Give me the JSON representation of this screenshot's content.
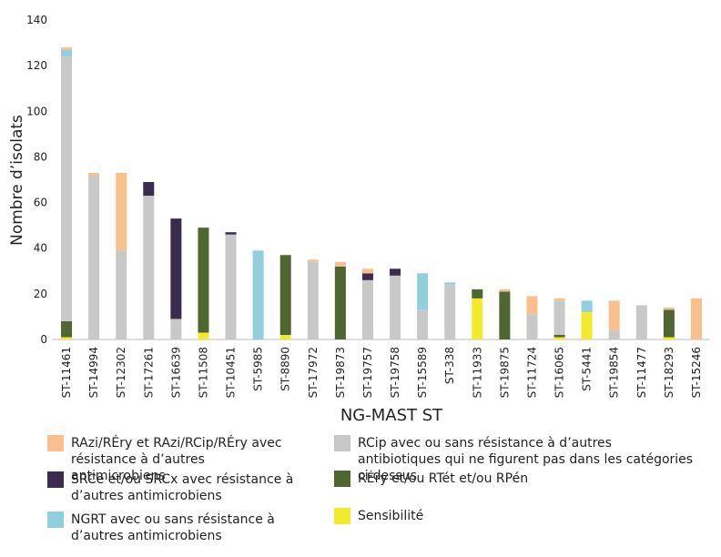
{
  "chart_data": {
    "type": "stacked_bar",
    "x_label": "NG-MAST ST",
    "y_label": "Nombre d’isolats",
    "categories": [
      "ST-11461",
      "ST-14994",
      "ST-12302",
      "ST-17261",
      "ST-16639",
      "ST-11508",
      "ST-10451",
      "ST-5985",
      "ST-8890",
      "ST-17972",
      "ST-19873",
      "ST-19757",
      "ST-19758",
      "ST-15589",
      "ST-338",
      "ST-11933",
      "ST-19875",
      "ST-11724",
      "ST-16065",
      "ST-5441",
      "ST-19854",
      "ST-11477",
      "ST-18293",
      "ST-15246"
    ],
    "series": [
      {
        "name": "Sensibilité",
        "color": "#f2ea2a",
        "values": [
          1,
          0,
          0,
          0,
          0,
          3,
          0,
          0,
          2,
          0,
          0,
          0,
          0,
          0,
          0,
          18,
          0,
          0,
          1,
          12,
          0,
          0,
          1,
          0
        ]
      },
      {
        "name": "RÉry et/ou RTét et/ou RPén",
        "color": "#4e6630",
        "values": [
          7,
          0,
          0,
          0,
          0,
          46,
          0,
          0,
          35,
          0,
          32,
          0,
          0,
          0,
          0,
          4,
          21,
          0,
          1,
          0,
          0,
          0,
          12,
          0
        ]
      },
      {
        "name": "RCip avec ou sans résistance à d’autres antibiotiques qui ne figurent pas dans les catégories ci-dessus",
        "color": "#c8c8c8",
        "values": [
          116,
          72,
          39,
          63,
          9,
          0,
          46,
          0,
          0,
          34,
          0,
          26,
          28,
          13,
          24,
          0,
          0,
          11,
          15,
          0,
          4,
          15,
          0,
          0
        ]
      },
      {
        "name": "SRCe et/ou SRCx avec résistance à d’autres antimicrobiens",
        "color": "#3b2c4f",
        "values": [
          0,
          0,
          0,
          6,
          44,
          0,
          1,
          0,
          0,
          0,
          0,
          3,
          3,
          0,
          0,
          0,
          0,
          0,
          0,
          0,
          0,
          0,
          0,
          0
        ]
      },
      {
        "name": "NGRT avec ou sans résistance à d’autres antimicrobiens",
        "color": "#92cfdc",
        "values": [
          3,
          0,
          0,
          0,
          0,
          0,
          0,
          39,
          0,
          0,
          0,
          0,
          0,
          16,
          1,
          0,
          0,
          0,
          0,
          5,
          0,
          0,
          0,
          0
        ]
      },
      {
        "name": "RAzi/RÉry et RAzi/RCip/RÉry avec résistance à d’autres antimicrobiens",
        "color": "#f9c08e",
        "values": [
          1,
          1,
          34,
          0,
          0,
          0,
          0,
          0,
          0,
          1,
          2,
          2,
          0,
          0,
          0,
          0,
          1,
          8,
          1,
          0,
          13,
          0,
          1,
          18
        ]
      }
    ],
    "ylim": [
      0,
      140
    ],
    "yticks": [
      0,
      20,
      40,
      60,
      80,
      100,
      120,
      140
    ],
    "grid": false
  }
}
